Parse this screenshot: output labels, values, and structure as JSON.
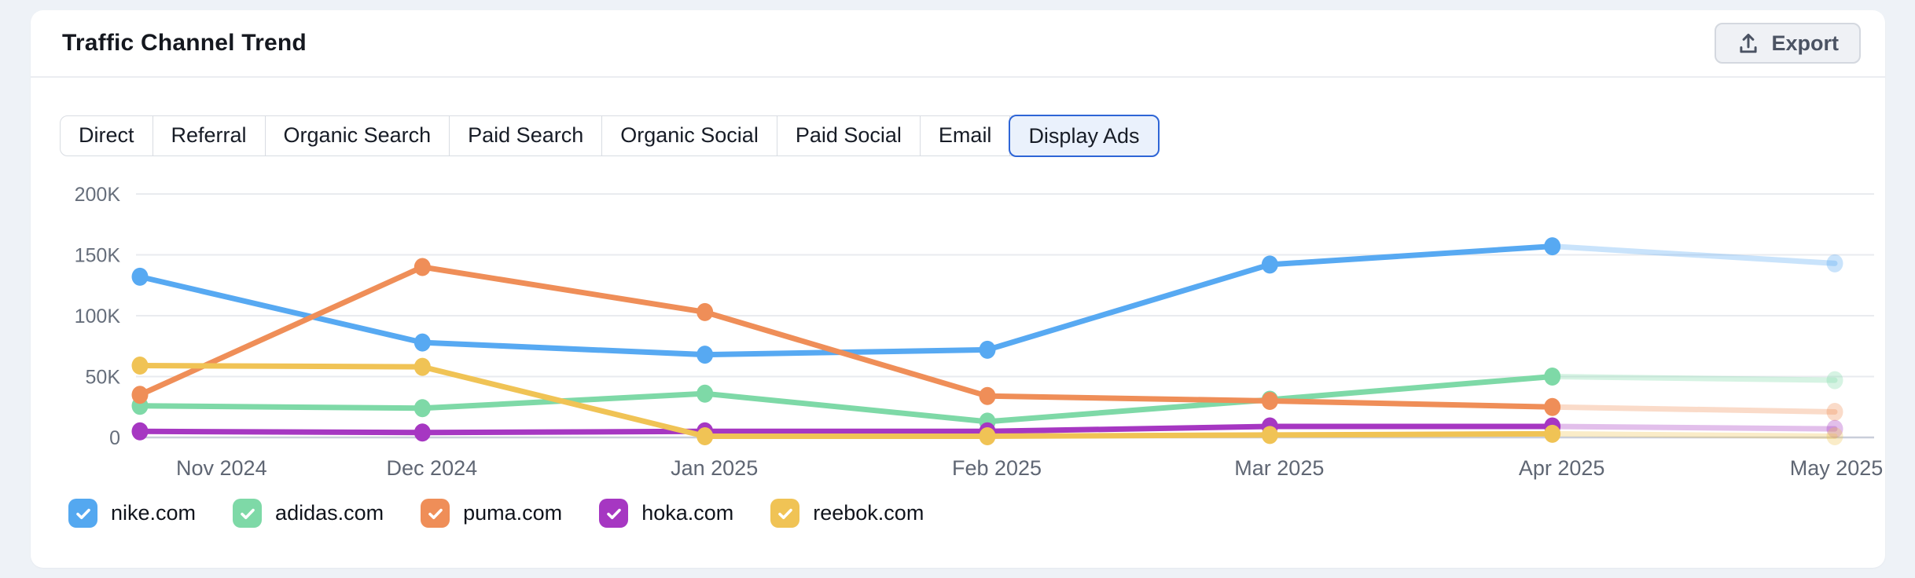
{
  "header": {
    "title": "Traffic Channel Trend",
    "export_label": "Export"
  },
  "tabs": [
    {
      "label": "Direct",
      "selected": false
    },
    {
      "label": "Referral",
      "selected": false
    },
    {
      "label": "Organic Search",
      "selected": false
    },
    {
      "label": "Paid Search",
      "selected": false
    },
    {
      "label": "Organic Social",
      "selected": false
    },
    {
      "label": "Paid Social",
      "selected": false
    },
    {
      "label": "Email",
      "selected": false
    },
    {
      "label": "Display Ads",
      "selected": true
    }
  ],
  "chart_data": {
    "type": "line",
    "title": "Traffic Channel Trend — Display Ads",
    "x_categories": [
      "Nov 2024",
      "Dec 2024",
      "Jan 2025",
      "Feb 2025",
      "Mar 2025",
      "Apr 2025",
      "May 2025"
    ],
    "y_axis": {
      "ticks": [
        {
          "value": 0,
          "label": "0"
        },
        {
          "value": 50000,
          "label": "50K"
        },
        {
          "value": 100000,
          "label": "100K"
        },
        {
          "value": 150000,
          "label": "150K"
        },
        {
          "value": 200000,
          "label": "200K"
        }
      ],
      "ylim": [
        0,
        200000
      ]
    },
    "grid": true,
    "legend_position": "bottom",
    "last_segment_style": "faded (projected month)",
    "series": [
      {
        "name": "nike.com",
        "color": "#57A9F2",
        "values": [
          132000,
          78000,
          68000,
          72000,
          142000,
          157000,
          143000
        ]
      },
      {
        "name": "adidas.com",
        "color": "#7ED9A7",
        "values": [
          26000,
          24000,
          36000,
          13000,
          31000,
          50000,
          47000
        ]
      },
      {
        "name": "puma.com",
        "color": "#EF8E58",
        "values": [
          35000,
          140000,
          103000,
          34000,
          30000,
          25000,
          21000
        ]
      },
      {
        "name": "hoka.com",
        "color": "#A637C2",
        "values": [
          5000,
          4000,
          5000,
          5000,
          9000,
          9000,
          7000
        ]
      },
      {
        "name": "reebok.com",
        "color": "#F0C355",
        "values": [
          59000,
          58000,
          1000,
          1000,
          2000,
          3000,
          1000
        ]
      }
    ]
  },
  "legend": [
    {
      "label": "nike.com",
      "color": "#54A8F0",
      "checked": true
    },
    {
      "label": "adidas.com",
      "color": "#7ED9A7",
      "checked": true
    },
    {
      "label": "puma.com",
      "color": "#EF8E58",
      "checked": true
    },
    {
      "label": "hoka.com",
      "color": "#A637C2",
      "checked": true
    },
    {
      "label": "reebok.com",
      "color": "#F0C355",
      "checked": true
    }
  ],
  "colors": {
    "page_background": "#EEF2F7",
    "card_background": "#FFFFFF",
    "gridline": "#E9EBEF",
    "axis_line": "#C9CEDA",
    "tick_text": "#666E7B",
    "selected_tab_border": "#2E65D6",
    "selected_tab_background": "#EAF1FC"
  }
}
